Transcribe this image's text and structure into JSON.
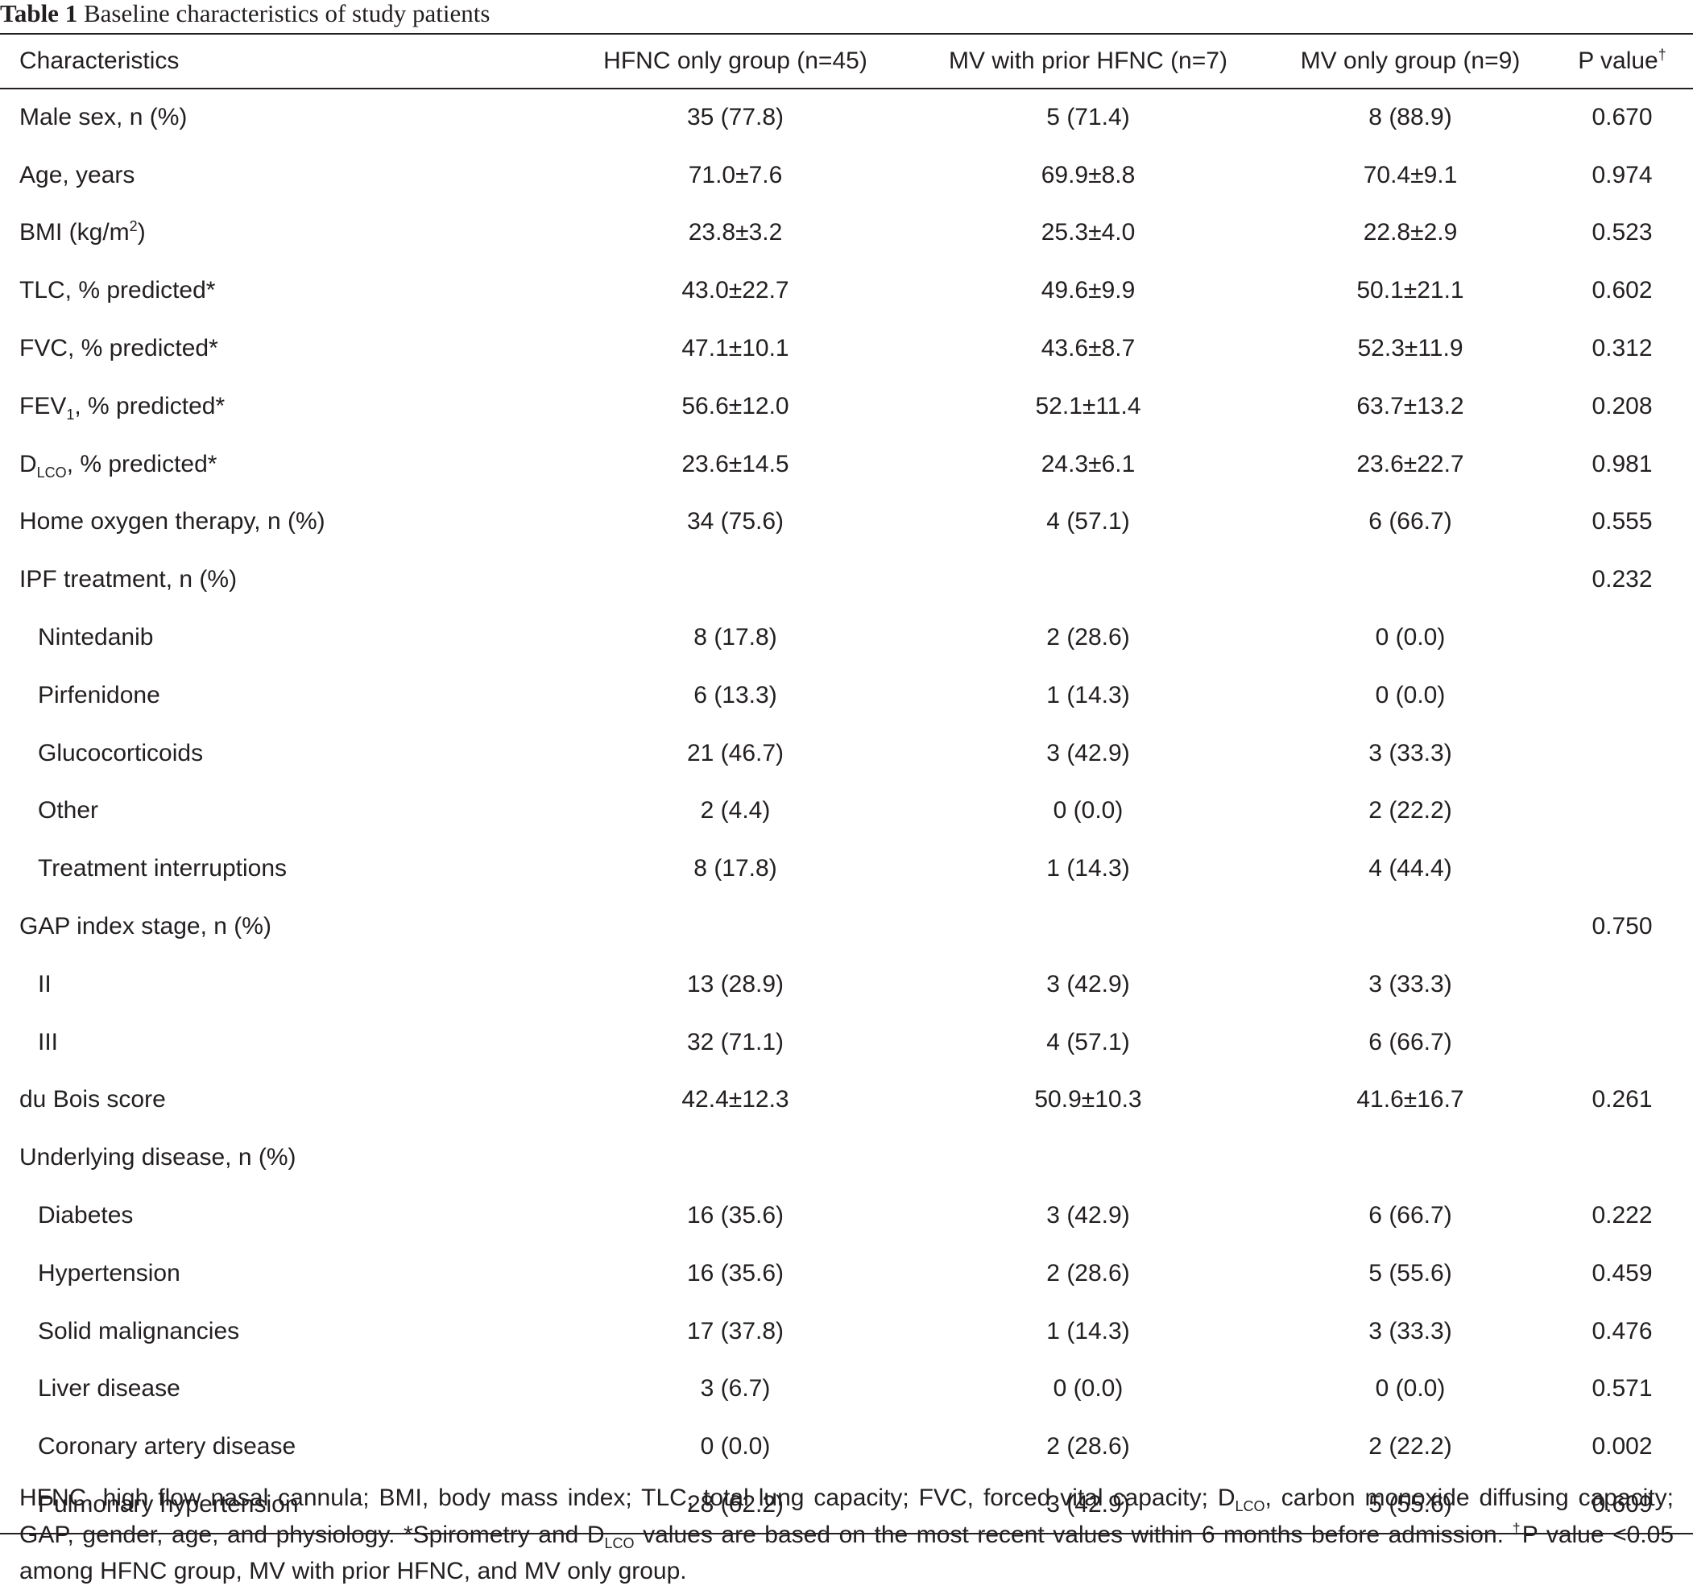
{
  "title": {
    "label": "Table 1",
    "text": "Baseline characteristics of study patients"
  },
  "table": {
    "header": [
      [
        {
          "text": "Characteristics"
        }
      ],
      [
        {
          "text": "HFNC only group (n=45)"
        }
      ],
      [
        {
          "text": "MV with prior HFNC (n=7)"
        }
      ],
      [
        {
          "text": "MV only group (n=9)"
        }
      ],
      [
        {
          "text": "P value"
        },
        {
          "sup": "†"
        }
      ]
    ],
    "rows": [
      {
        "label": [
          {
            "text": "Male sex, n (%)"
          }
        ],
        "cells": [
          "35 (77.8)",
          "5 (71.4)",
          "8 (88.9)",
          "0.670"
        ]
      },
      {
        "label": [
          {
            "text": "Age, years"
          }
        ],
        "cells": [
          "71.0±7.6",
          "69.9±8.8",
          "70.4±9.1",
          "0.974"
        ]
      },
      {
        "label": [
          {
            "text": "BMI (kg/m"
          },
          {
            "sup": "2"
          },
          {
            "text": ")"
          }
        ],
        "cells": [
          "23.8±3.2",
          "25.3±4.0",
          "22.8±2.9",
          "0.523"
        ]
      },
      {
        "label": [
          {
            "text": "TLC, % predicted*"
          }
        ],
        "cells": [
          "43.0±22.7",
          "49.6±9.9",
          "50.1±21.1",
          "0.602"
        ]
      },
      {
        "label": [
          {
            "text": "FVC, % predicted*"
          }
        ],
        "cells": [
          "47.1±10.1",
          "43.6±8.7",
          "52.3±11.9",
          "0.312"
        ]
      },
      {
        "label": [
          {
            "text": "FEV"
          },
          {
            "sub": "1"
          },
          {
            "text": ", % predicted*"
          }
        ],
        "cells": [
          "56.6±12.0",
          "52.1±11.4",
          "63.7±13.2",
          "0.208"
        ]
      },
      {
        "label": [
          {
            "text": "D"
          },
          {
            "sub": "LCO"
          },
          {
            "text": ", % predicted*"
          }
        ],
        "cells": [
          "23.6±14.5",
          "24.3±6.1",
          "23.6±22.7",
          "0.981"
        ]
      },
      {
        "label": [
          {
            "text": "Home oxygen therapy, n (%)"
          }
        ],
        "cells": [
          "34 (75.6)",
          "4 (57.1)",
          "6 (66.7)",
          "0.555"
        ]
      },
      {
        "label": [
          {
            "text": "IPF treatment, n (%)"
          }
        ],
        "cells": [
          null,
          null,
          null,
          "0.232"
        ]
      },
      {
        "label": [
          {
            "text": "Nintedanib"
          }
        ],
        "indent": true,
        "cells": [
          "8 (17.8)",
          "2 (28.6)",
          "0 (0.0)",
          null
        ]
      },
      {
        "label": [
          {
            "text": "Pirfenidone"
          }
        ],
        "indent": true,
        "cells": [
          "6 (13.3)",
          "1 (14.3)",
          "0 (0.0)",
          null
        ]
      },
      {
        "label": [
          {
            "text": "Glucocorticoids"
          }
        ],
        "indent": true,
        "cells": [
          "21 (46.7)",
          "3 (42.9)",
          "3 (33.3)",
          null
        ]
      },
      {
        "label": [
          {
            "text": "Other"
          }
        ],
        "indent": true,
        "cells": [
          "2 (4.4)",
          "0 (0.0)",
          "2 (22.2)",
          null
        ]
      },
      {
        "label": [
          {
            "text": "Treatment interruptions"
          }
        ],
        "indent": true,
        "cells": [
          "8 (17.8)",
          "1 (14.3)",
          "4 (44.4)",
          null
        ]
      },
      {
        "label": [
          {
            "text": "GAP index stage, n (%)"
          }
        ],
        "cells": [
          null,
          null,
          null,
          "0.750"
        ]
      },
      {
        "label": [
          {
            "text": "II"
          }
        ],
        "indent": true,
        "cells": [
          "13 (28.9)",
          "3 (42.9)",
          "3 (33.3)",
          null
        ]
      },
      {
        "label": [
          {
            "text": "III"
          }
        ],
        "indent": true,
        "cells": [
          "32 (71.1)",
          "4 (57.1)",
          "6 (66.7)",
          null
        ]
      },
      {
        "label": [
          {
            "text": "du Bois score"
          }
        ],
        "cells": [
          "42.4±12.3",
          "50.9±10.3",
          "41.6±16.7",
          "0.261"
        ]
      },
      {
        "label": [
          {
            "text": "Underlying disease, n (%)"
          }
        ],
        "cells": [
          null,
          null,
          null,
          null
        ]
      },
      {
        "label": [
          {
            "text": "Diabetes"
          }
        ],
        "indent": true,
        "cells": [
          "16 (35.6)",
          "3 (42.9)",
          "6 (66.7)",
          "0.222"
        ]
      },
      {
        "label": [
          {
            "text": "Hypertension"
          }
        ],
        "indent": true,
        "cells": [
          "16 (35.6)",
          "2 (28.6)",
          "5 (55.6)",
          "0.459"
        ]
      },
      {
        "label": [
          {
            "text": "Solid malignancies"
          }
        ],
        "indent": true,
        "cells": [
          "17 (37.8)",
          "1 (14.3)",
          "3 (33.3)",
          "0.476"
        ]
      },
      {
        "label": [
          {
            "text": "Liver disease"
          }
        ],
        "indent": true,
        "cells": [
          "3 (6.7)",
          "0 (0.0)",
          "0 (0.0)",
          "0.571"
        ]
      },
      {
        "label": [
          {
            "text": "Coronary artery disease"
          }
        ],
        "indent": true,
        "cells": [
          "0 (0.0)",
          "2 (28.6)",
          "2 (22.2)",
          "0.002"
        ]
      },
      {
        "label": [
          {
            "text": "Pulmonary hypertension"
          }
        ],
        "indent": true,
        "cells": [
          "28 (62.2)",
          "3 (42.9)",
          "5 (55.6)",
          "0.609"
        ]
      }
    ]
  },
  "footnote": [
    {
      "text": "HFNC, high flow nasal cannula; BMI, body mass index; TLC, total lung capacity; FVC, forced vital capacity; D"
    },
    {
      "sub": "LCO"
    },
    {
      "text": ", carbon monoxide diffusing capacity; GAP, gender, age, and physiology. *Spirometry and D"
    },
    {
      "sub": "LCO"
    },
    {
      "text": " values are based on the most recent values within 6 months before admission. "
    },
    {
      "sup": "†"
    },
    {
      "text": "P value <0.05 among HFNC group, MV with prior HFNC, and MV only group."
    }
  ]
}
